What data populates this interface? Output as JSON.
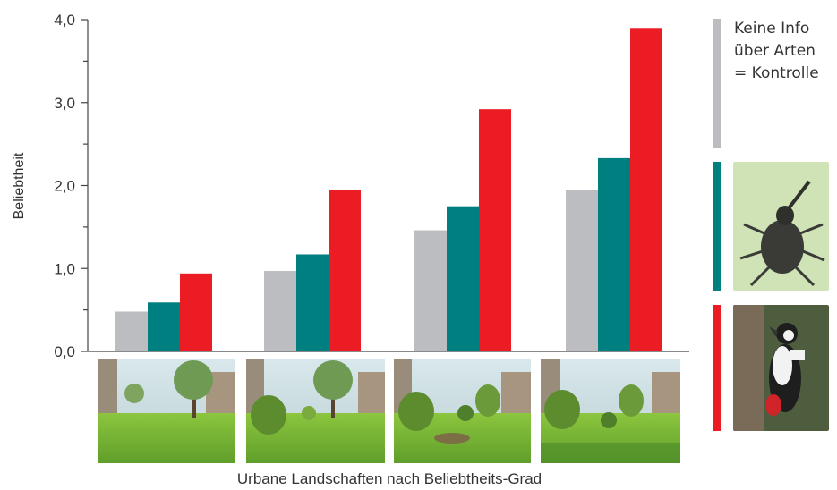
{
  "chart_data": {
    "type": "bar",
    "ylabel": "Beliebtheit",
    "xlabel": "Urbane Landschaften nach Beliebtheits-Grad",
    "ylim": [
      0,
      4
    ],
    "yticks": [
      "0,0",
      "1,0",
      "2,0",
      "3,0",
      "4,0"
    ],
    "categories": [
      "",
      "",
      "",
      ""
    ],
    "series": [
      {
        "values": [
          0.48,
          0.97,
          1.46,
          1.95
        ],
        "color": "#bcbdc1"
      },
      {
        "values": [
          0.59,
          1.17,
          1.75,
          2.33
        ],
        "color": "#007f80"
      },
      {
        "values": [
          0.94,
          1.95,
          2.92,
          3.9
        ],
        "color": "#ec1c24"
      }
    ],
    "grid": false
  },
  "legend": {
    "control_lines": [
      "Keine Info",
      "über Arten",
      "= Kontrolle"
    ],
    "colors": [
      "#bcbdc1",
      "#007f80",
      "#ec1c24"
    ],
    "icons": [
      "weevil-icon",
      "woodpecker-icon"
    ]
  }
}
